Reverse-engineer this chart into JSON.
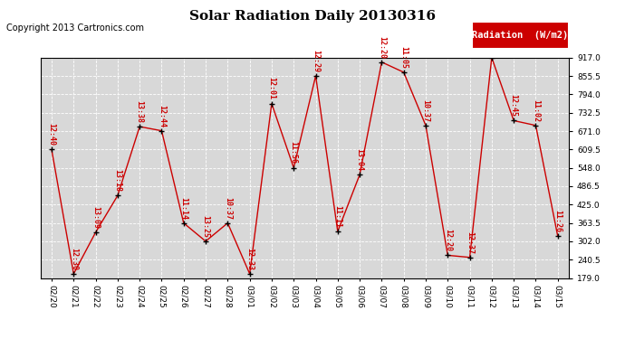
{
  "title": "Solar Radiation Daily 20130316",
  "copyright": "Copyright 2013 Cartronics.com",
  "legend_label": "Radiation  (W/m2)",
  "dates": [
    "02/20",
    "02/21",
    "02/22",
    "02/23",
    "02/24",
    "02/25",
    "02/26",
    "02/27",
    "02/28",
    "03/01",
    "03/02",
    "03/03",
    "03/04",
    "03/05",
    "03/06",
    "03/07",
    "03/08",
    "03/09",
    "03/10",
    "03/11",
    "03/12",
    "03/13",
    "03/14",
    "03/15"
  ],
  "values": [
    609,
    193,
    332,
    455,
    686,
    672,
    363,
    302,
    363,
    193,
    763,
    548,
    856,
    335,
    525,
    902,
    868,
    690,
    255,
    248,
    917,
    706,
    690,
    319
  ],
  "labels": [
    "12:40",
    "12:30",
    "13:09",
    "13:18",
    "13:38",
    "12:44",
    "11:14",
    "13:25",
    "10:37",
    "12:33",
    "12:01",
    "11:56",
    "12:29",
    "11:11",
    "13:04",
    "12:20",
    "11:05",
    "10:37",
    "12:20",
    "12:37",
    "",
    "12:45",
    "11:02",
    "11:26"
  ],
  "ylim_min": 179.0,
  "ylim_max": 917.0,
  "yticks": [
    179.0,
    240.5,
    302.0,
    363.5,
    425.0,
    486.5,
    548.0,
    609.5,
    671.0,
    732.5,
    794.0,
    855.5,
    917.0
  ],
  "line_color": "#cc0000",
  "marker_color": "#000000",
  "plot_bg_color": "#d8d8d8",
  "fig_bg_color": "#ffffff",
  "grid_color": "#ffffff",
  "legend_bg": "#cc0000",
  "legend_text_color": "#ffffff",
  "title_fontsize": 11,
  "label_fontsize": 6.0,
  "axis_fontsize": 6.5,
  "copyright_fontsize": 7
}
